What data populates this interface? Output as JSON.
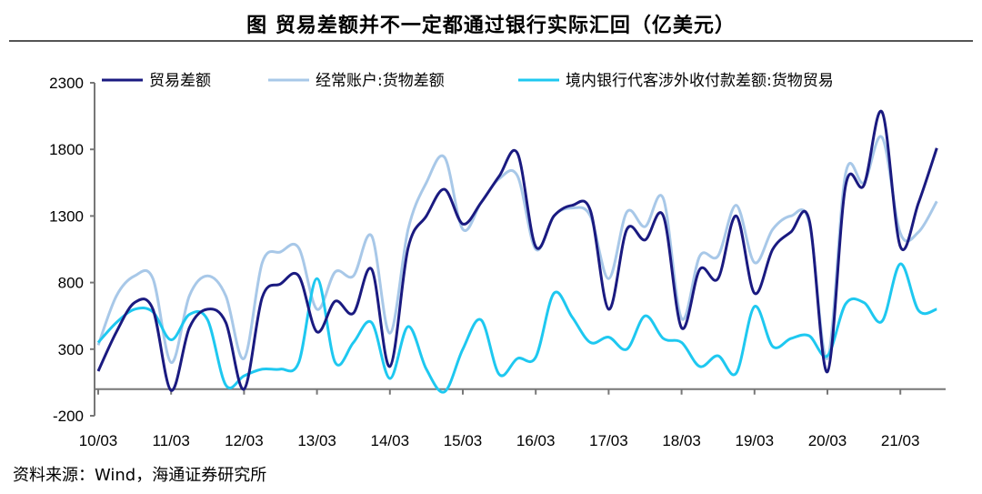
{
  "chart_data": {
    "type": "line",
    "title": "图  贸易差额并不一定都通过银行实际汇回（亿美元）",
    "source": "资料来源：Wind，海通证券研究所",
    "x_tick_labels": [
      "10/03",
      "11/03",
      "12/03",
      "13/03",
      "14/03",
      "15/03",
      "16/03",
      "17/03",
      "18/03",
      "19/03",
      "20/03",
      "21/03"
    ],
    "x": [
      "10Q1",
      "10Q2",
      "10Q3",
      "10Q4",
      "11Q1",
      "11Q2",
      "11Q3",
      "11Q4",
      "12Q1",
      "12Q2",
      "12Q3",
      "12Q4",
      "13Q1",
      "13Q2",
      "13Q3",
      "13Q4",
      "14Q1",
      "14Q2",
      "14Q3",
      "14Q4",
      "15Q1",
      "15Q2",
      "15Q3",
      "15Q4",
      "16Q1",
      "16Q2",
      "16Q3",
      "16Q4",
      "17Q1",
      "17Q2",
      "17Q3",
      "17Q4",
      "18Q1",
      "18Q2",
      "18Q3",
      "18Q4",
      "19Q1",
      "19Q2",
      "19Q3",
      "19Q4",
      "20Q1",
      "20Q2",
      "20Q3",
      "20Q4",
      "21Q1",
      "21Q2",
      "21Q3"
    ],
    "ylim": [
      -200,
      2300
    ],
    "y_ticks": [
      -200,
      300,
      800,
      1300,
      1800,
      2300
    ],
    "grid": false,
    "legend_position": "top",
    "series": [
      {
        "name": "贸易差额",
        "color": "#1a1a80",
        "values": [
          135,
          430,
          650,
          600,
          -10,
          460,
          600,
          500,
          0,
          690,
          790,
          850,
          430,
          660,
          570,
          900,
          170,
          1060,
          1300,
          1500,
          1240,
          1400,
          1600,
          1770,
          1070,
          1300,
          1380,
          1340,
          600,
          1200,
          1120,
          1300,
          460,
          900,
          830,
          1300,
          720,
          1050,
          1180,
          1270,
          130,
          1530,
          1530,
          2080,
          1070,
          1400,
          1810
        ]
      },
      {
        "name": "经常账户:货物差额",
        "color": "#a8c8e8",
        "values": [
          330,
          700,
          850,
          830,
          200,
          700,
          850,
          700,
          230,
          950,
          1030,
          1060,
          600,
          880,
          850,
          1150,
          420,
          1200,
          1550,
          1740,
          1200,
          1400,
          1580,
          1600,
          1050,
          1300,
          1360,
          1300,
          830,
          1330,
          1220,
          1430,
          530,
          1000,
          1000,
          1380,
          950,
          1200,
          1300,
          1250,
          230,
          1620,
          1550,
          1890,
          1170,
          1180,
          1410
        ]
      },
      {
        "name": "境内银行代客涉外收付款差额:货物贸易",
        "color": "#1ec8f0",
        "values": [
          350,
          500,
          600,
          580,
          370,
          560,
          520,
          30,
          100,
          150,
          150,
          200,
          830,
          200,
          350,
          500,
          80,
          470,
          150,
          -20,
          300,
          520,
          110,
          230,
          240,
          720,
          540,
          350,
          390,
          300,
          550,
          380,
          350,
          170,
          250,
          120,
          620,
          320,
          380,
          400,
          250,
          640,
          650,
          510,
          940,
          590,
          600
        ]
      }
    ]
  }
}
